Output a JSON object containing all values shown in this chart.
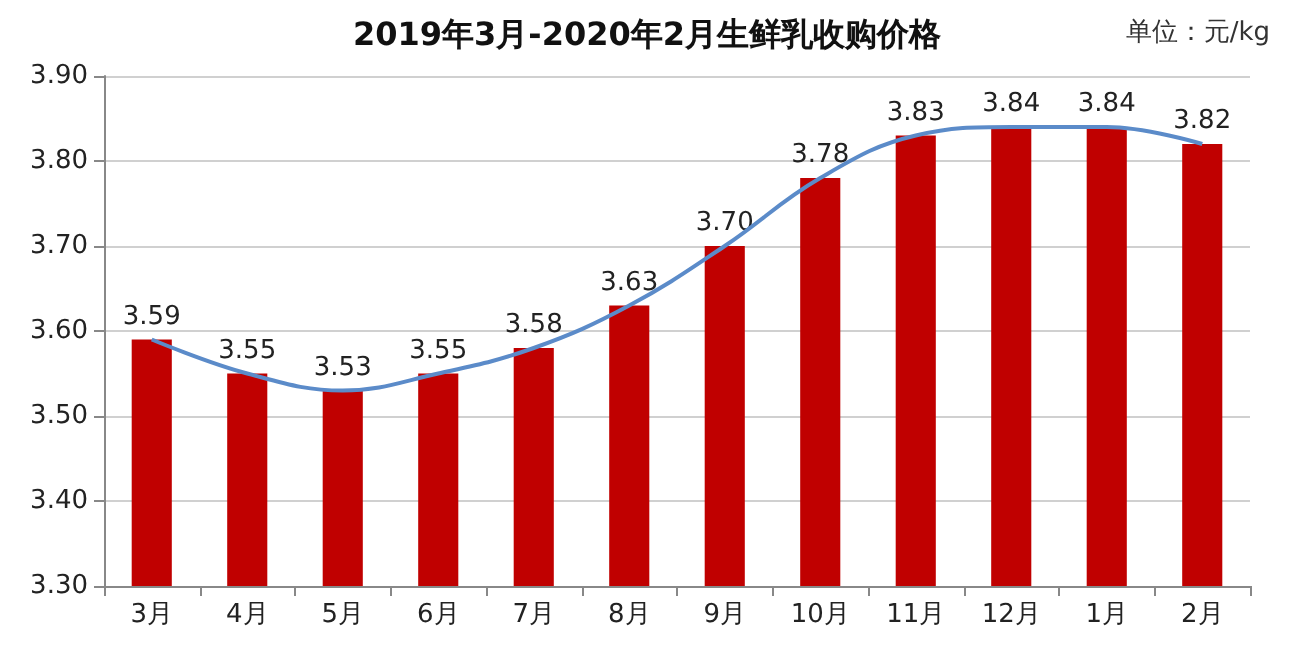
{
  "chart_data": {
    "type": "bar",
    "title": "2019年3月-2020年2月生鲜乳收购价格",
    "annotations": [
      "单位：元/kg"
    ],
    "categories": [
      "3月",
      "4月",
      "5月",
      "6月",
      "7月",
      "8月",
      "9月",
      "10月",
      "11月",
      "12月",
      "1月",
      "2月"
    ],
    "series": [
      {
        "color": "#c00000",
        "values": [
          3.59,
          3.55,
          3.53,
          3.55,
          3.58,
          3.63,
          3.7,
          3.78,
          3.83,
          3.84,
          3.84,
          3.82
        ],
        "value_labels": [
          "3.59",
          "3.55",
          "3.53",
          "3.55",
          "3.58",
          "3.63",
          "3.70",
          "3.78",
          "3.83",
          "3.84",
          "3.84",
          "3.82"
        ]
      },
      {
        "type": "line",
        "color": "#5b8bc9",
        "marker": "none",
        "values": [
          3.59,
          3.55,
          3.53,
          3.55,
          3.58,
          3.63,
          3.7,
          3.78,
          3.83,
          3.84,
          3.84,
          3.82
        ]
      }
    ],
    "ylim": [
      3.3,
      3.9
    ],
    "yticks": [
      {
        "value": 3.3,
        "label": "3.30"
      },
      {
        "value": 3.4,
        "label": "3.40"
      },
      {
        "value": 3.5,
        "label": "3.50"
      },
      {
        "value": 3.6,
        "label": "3.60"
      },
      {
        "value": 3.7,
        "label": "3.70"
      },
      {
        "value": 3.8,
        "label": "3.80"
      },
      {
        "value": 3.9,
        "label": "3.90"
      }
    ],
    "grid": "y"
  }
}
